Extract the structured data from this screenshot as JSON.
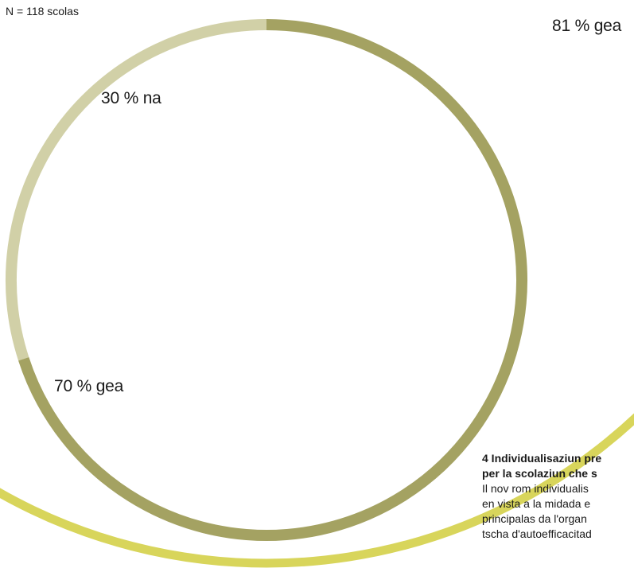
{
  "note": "N = 118 scolas",
  "chart_data": [
    {
      "type": "pie",
      "title": "",
      "labels": [
        "30 % na",
        "70 % gea"
      ],
      "slices": [
        {
          "label": "30 % na",
          "value": 30,
          "color": "#d1d0a7"
        },
        {
          "label": "70 % gea",
          "value": 70,
          "color": "#a4a262"
        }
      ]
    },
    {
      "type": "pie",
      "title": "",
      "labels": [
        "81 % gea"
      ],
      "slices": [
        {
          "label": "81 % gea",
          "value": 81,
          "color": "#d8d55b"
        },
        {
          "label": "",
          "value": 19,
          "color": "#ebe8bd"
        }
      ]
    }
  ],
  "caption": {
    "title_lines": [
      "4 Individualisaziun pre",
      "per la scolaziun che s"
    ],
    "body_lines": [
      "Il nov rom individualis",
      "en vista a la midada e",
      "principalas da l'organ",
      "tscha d'autoefficacitad"
    ]
  }
}
